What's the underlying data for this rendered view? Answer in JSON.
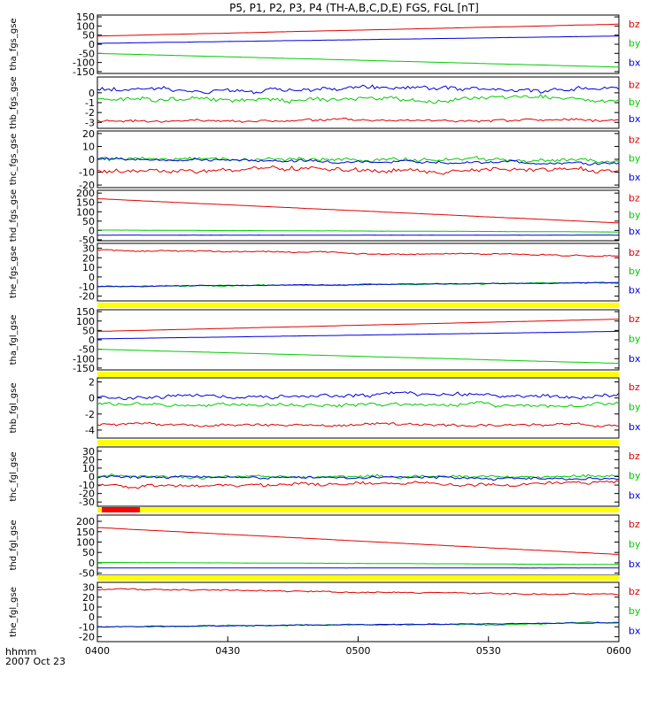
{
  "title": "P5, P1, P2, P3, P4 (TH-A,B,C,D,E) FGS, FGL [nT]",
  "footer": {
    "time_label": "hhmm",
    "date_label": "2007 Oct 23"
  },
  "x_ticks": [
    "0400",
    "0430",
    "0500",
    "0530",
    "0600"
  ],
  "colors": {
    "bz": "#e00000",
    "by": "#00cc00",
    "bx": "#0000dd",
    "bar_yellow": "#ffff00",
    "bar_red": "#ff0000"
  },
  "panels": [
    {
      "ylabel": "tha_fgs_gse",
      "ylim": [
        -160,
        160
      ],
      "yticks": [
        "150",
        "100",
        "50",
        "0",
        "-50",
        "-100",
        "-150"
      ],
      "legend": [
        "bz",
        "by",
        "bx"
      ],
      "series": [
        {
          "name": "bz",
          "start": 45,
          "end": 110,
          "noise": 0.5
        },
        {
          "name": "by",
          "start": -50,
          "end": -125,
          "noise": 0.5
        },
        {
          "name": "bx",
          "start": 5,
          "end": 45,
          "noise": 0.5
        }
      ]
    },
    {
      "ylabel": "thb_fgs_gse",
      "ylim": [
        -3.6,
        1.6
      ],
      "yticks": [
        "0",
        "-1",
        "-2",
        "-3"
      ],
      "legend": [
        "bz",
        "by",
        "bx"
      ],
      "series": [
        {
          "name": "bz",
          "start": -2.8,
          "end": -2.8,
          "noise": 0.2
        },
        {
          "name": "by",
          "start": -0.6,
          "end": -0.6,
          "noise": 0.3
        },
        {
          "name": "bx",
          "start": 0.3,
          "end": 0.4,
          "noise": 0.3
        }
      ]
    },
    {
      "ylabel": "thc_fgs_gse",
      "ylim": [
        -22,
        22
      ],
      "yticks": [
        "20",
        "10",
        "0",
        "-10",
        "-20"
      ],
      "legend": [
        "bz",
        "by",
        "bx"
      ],
      "series": [
        {
          "name": "bz",
          "start": -9,
          "end": -8,
          "noise": 2.5
        },
        {
          "name": "by",
          "start": 0,
          "end": -1,
          "noise": 2
        },
        {
          "name": "bx",
          "start": 0,
          "end": -3,
          "noise": 1.5
        }
      ]
    },
    {
      "ylabel": "thd_fgs_gse",
      "ylim": [
        -55,
        215
      ],
      "yticks": [
        "200",
        "150",
        "100",
        "50",
        "0",
        "-50"
      ],
      "legend": [
        "bz",
        "by",
        "bx"
      ],
      "series": [
        {
          "name": "bz",
          "start": 170,
          "end": 40,
          "noise": 0.5
        },
        {
          "name": "by",
          "start": 2,
          "end": -8,
          "noise": 0.5
        },
        {
          "name": "bx",
          "start": -25,
          "end": -25,
          "noise": 0.3
        }
      ]
    },
    {
      "ylabel": "the_fgs_gse",
      "ylim": [
        -25,
        35
      ],
      "yticks": [
        "30",
        "20",
        "10",
        "0",
        "-10",
        "-20"
      ],
      "legend": [
        "bz",
        "by",
        "bx"
      ],
      "series": [
        {
          "name": "bz",
          "start": 28,
          "end": 22,
          "noise": 1
        },
        {
          "name": "by",
          "start": -10,
          "end": -6,
          "noise": 1
        },
        {
          "name": "bx",
          "start": -10,
          "end": -6,
          "noise": 0.5
        }
      ]
    },
    {
      "ylabel": "tha_fgl_gse",
      "ylim": [
        -160,
        160
      ],
      "yticks": [
        "150",
        "100",
        "50",
        "0",
        "-50",
        "-100",
        "-150"
      ],
      "legend": [
        "bz",
        "by",
        "bx"
      ],
      "series": [
        {
          "name": "bz",
          "start": 45,
          "end": 110,
          "noise": 0.5
        },
        {
          "name": "by",
          "start": -50,
          "end": -125,
          "noise": 0.5
        },
        {
          "name": "bx",
          "start": 5,
          "end": 45,
          "noise": 0.5
        }
      ]
    },
    {
      "ylabel": "thb_fgl_gse",
      "ylim": [
        -5,
        2.5
      ],
      "yticks": [
        "2",
        "0",
        "-2",
        "-4"
      ],
      "legend": [
        "bz",
        "by",
        "bx"
      ],
      "series": [
        {
          "name": "bz",
          "start": -3.3,
          "end": -3.3,
          "noise": 0.25
        },
        {
          "name": "by",
          "start": -0.8,
          "end": -0.8,
          "noise": 0.35
        },
        {
          "name": "bx",
          "start": 0.2,
          "end": 0.3,
          "noise": 0.35
        }
      ]
    },
    {
      "ylabel": "thc_fgl_gse",
      "ylim": [
        -35,
        35
      ],
      "yticks": [
        "30",
        "20",
        "10",
        "0",
        "-10",
        "-20",
        "-30"
      ],
      "legend": [
        "bz",
        "by",
        "bx"
      ],
      "series": [
        {
          "name": "bz",
          "start": -10,
          "end": -8,
          "noise": 3
        },
        {
          "name": "by",
          "start": 0,
          "end": 0,
          "noise": 2.5
        },
        {
          "name": "bx",
          "start": 0,
          "end": -2,
          "noise": 2
        }
      ]
    },
    {
      "ylabel": "thd_fgl_gse",
      "ylim": [
        -60,
        230
      ],
      "yticks": [
        "200",
        "150",
        "100",
        "50",
        "0",
        "-50"
      ],
      "legend": [
        "bz",
        "by",
        "bx"
      ],
      "series": [
        {
          "name": "bz",
          "start": 170,
          "end": 40,
          "noise": 0.5
        },
        {
          "name": "by",
          "start": 2,
          "end": -8,
          "noise": 0.5
        },
        {
          "name": "bx",
          "start": -25,
          "end": -25,
          "noise": 0.3
        }
      ]
    },
    {
      "ylabel": "the_fgl_gse",
      "ylim": [
        -25,
        35
      ],
      "yticks": [
        "30",
        "20",
        "10",
        "0",
        "-10",
        "-20"
      ],
      "legend": [
        "bz",
        "by",
        "bx"
      ],
      "series": [
        {
          "name": "bz",
          "start": 28,
          "end": 22,
          "noise": 1
        },
        {
          "name": "by",
          "start": -10,
          "end": -6,
          "noise": 1
        },
        {
          "name": "bx",
          "start": -10,
          "end": -6,
          "noise": 0.5
        }
      ]
    }
  ],
  "chart_data": {
    "type": "line",
    "title": "P5, P1, P2, P3, P4 (TH-A,B,C,D,E) FGS, FGL [nT]",
    "xlabel": "hhmm 2007 Oct 23",
    "x_range": [
      "0400",
      "0600"
    ],
    "series_names": [
      "bz",
      "by",
      "bx"
    ]
  }
}
